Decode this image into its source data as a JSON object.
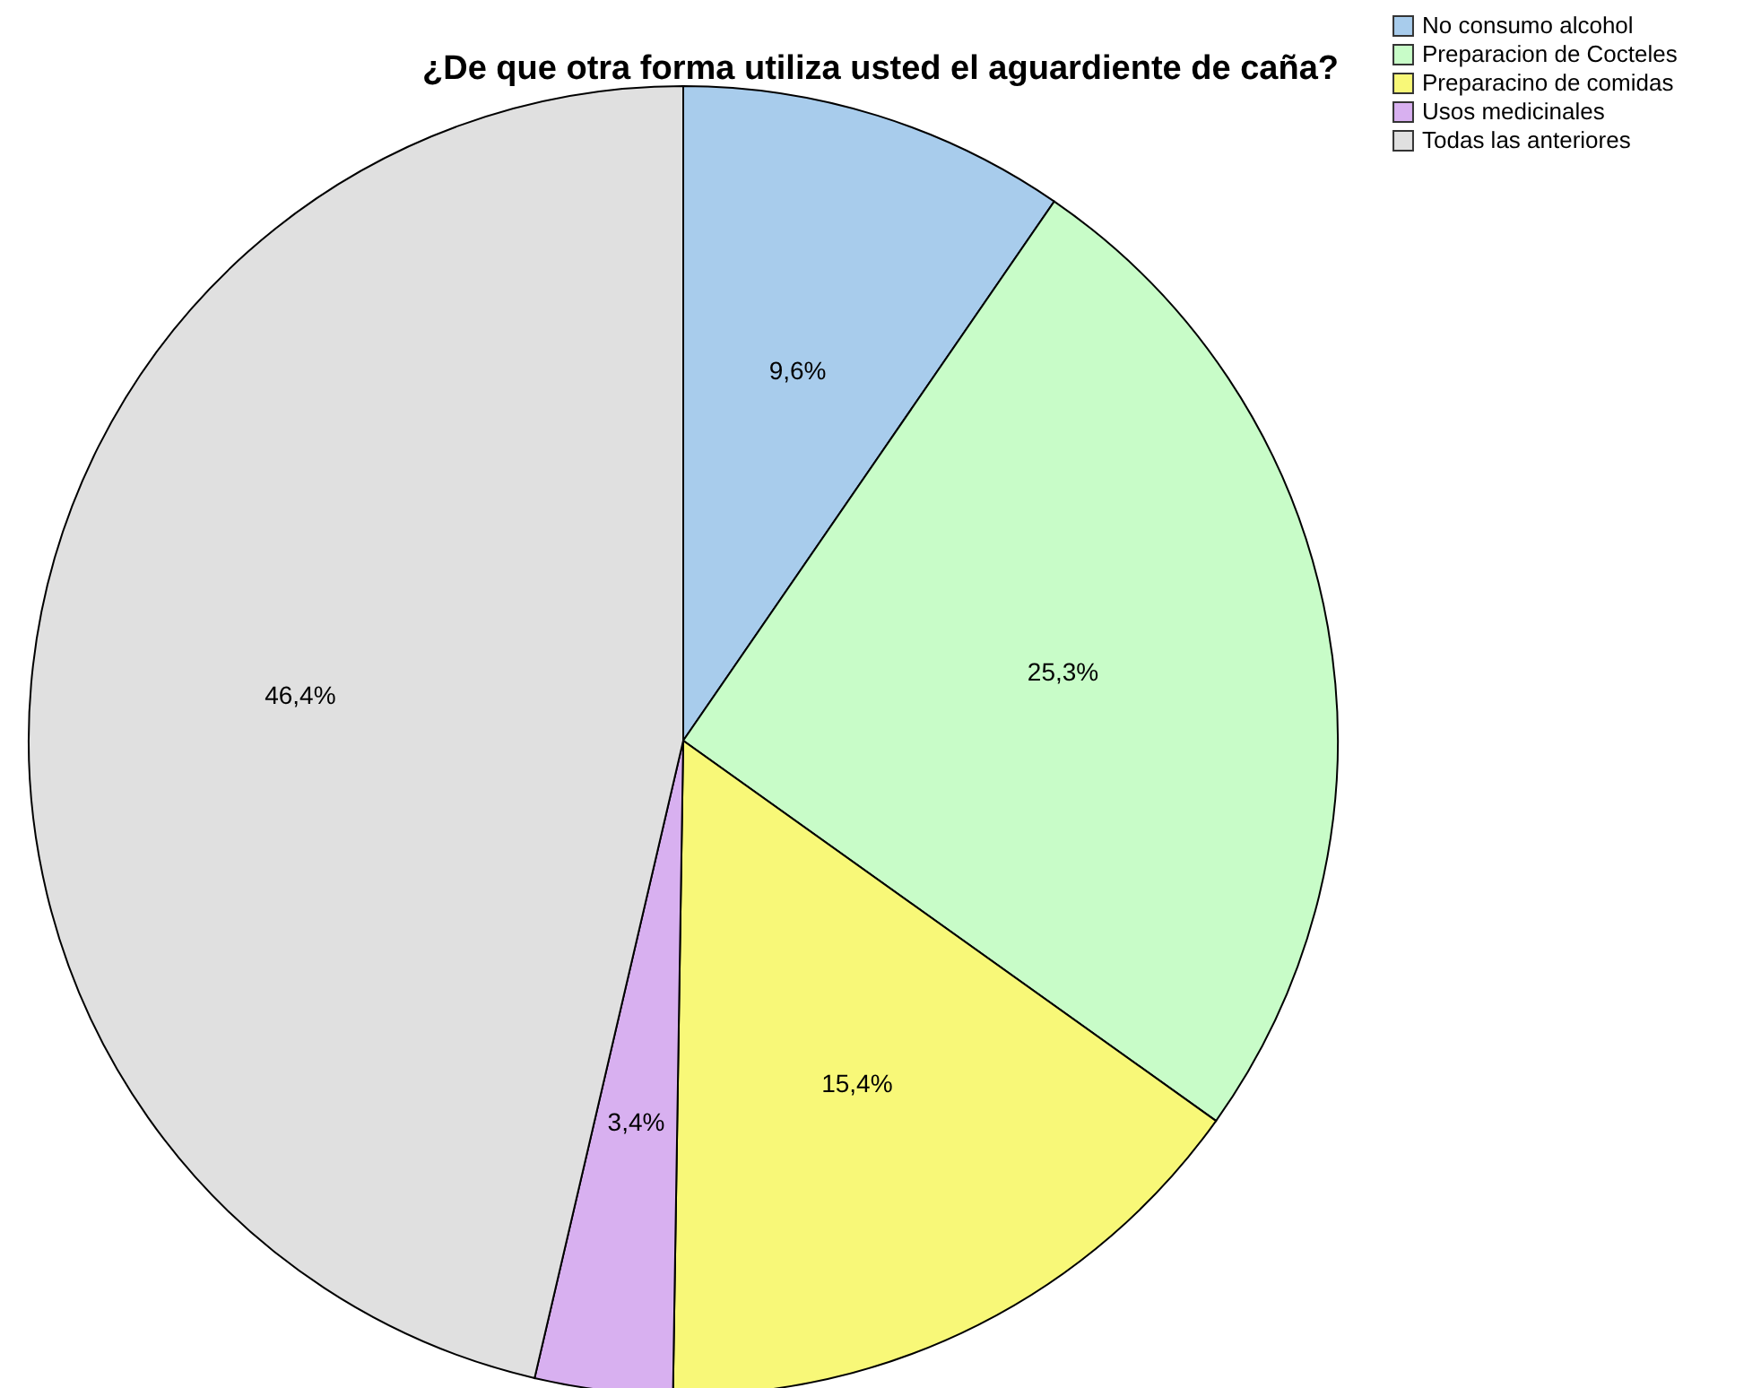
{
  "chart_data": {
    "type": "pie",
    "title": "¿De que otra forma utiliza usted el aguardiente de caña?",
    "categories": [
      "No consumo alcohol",
      "Preparacion de Cocteles",
      "Preparacino de comidas",
      "Usos medicinales",
      "Todas las anteriores"
    ],
    "values": [
      9.6,
      25.3,
      15.4,
      3.4,
      46.4
    ],
    "colors": [
      "#a8ccec",
      "#c8fcc8",
      "#f8f878",
      "#d8b0f0",
      "#e0e0e0"
    ],
    "value_labels": [
      "9,6%",
      "25,3%",
      "15,4%",
      "3,4%",
      "46,4%"
    ],
    "legend": "top right"
  }
}
